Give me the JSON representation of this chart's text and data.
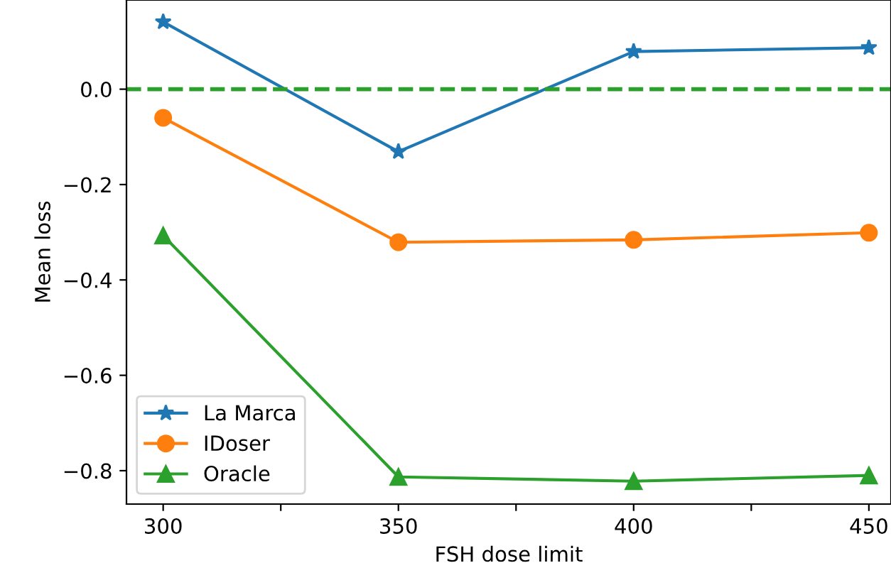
{
  "chart_data": {
    "type": "line",
    "xlabel": "FSH dose limit",
    "ylabel": "Mean loss",
    "x": [
      300,
      350,
      400,
      450
    ],
    "series": [
      {
        "name": "La Marca",
        "color": "#1f77b4",
        "marker": "star",
        "values": [
          0.141,
          -0.131,
          0.079,
          0.087
        ]
      },
      {
        "name": "IDoser",
        "color": "#ff7f0e",
        "marker": "circle",
        "values": [
          -0.06,
          -0.321,
          -0.316,
          -0.301
        ]
      },
      {
        "name": "Oracle",
        "color": "#2ca02c",
        "marker": "triangle",
        "values": [
          -0.307,
          -0.813,
          -0.822,
          -0.81
        ]
      }
    ],
    "xlim": [
      292.2,
      454.7
    ],
    "ylim": [
      -0.87,
      0.187
    ],
    "xticks": [
      300,
      {
        "value": 325,
        "label": null
      },
      350,
      {
        "value": 375,
        "label": null
      },
      400,
      {
        "value": 425,
        "label": null
      },
      450
    ],
    "yticks": [
      {
        "value": 0.0,
        "label": "0.0"
      },
      {
        "value": -0.2,
        "label": "−0.2"
      },
      {
        "value": -0.4,
        "label": "−0.4"
      },
      {
        "value": -0.6,
        "label": "−0.6"
      },
      {
        "value": -0.8,
        "label": "−0.8"
      }
    ],
    "ref_lines": [
      {
        "axis": "y",
        "value": 0,
        "color": "#2ca02c",
        "line_style": "dashed"
      }
    ],
    "legend": "bottom left",
    "grid": false,
    "line_style": "solid"
  }
}
